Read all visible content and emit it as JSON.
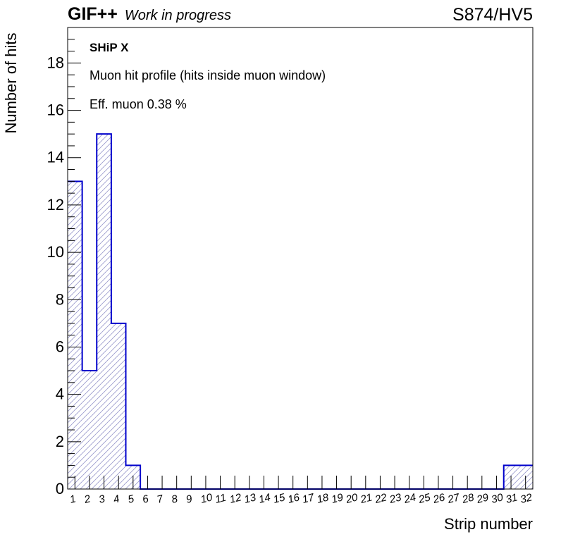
{
  "header": {
    "brand": "GIF++",
    "status": "Work in progress",
    "run_label": "S874/HV5"
  },
  "annotations": {
    "title": "SHiP X",
    "description": "Muon hit profile (hits inside muon window)",
    "efficiency": "Eff. muon 0.38 %"
  },
  "chart_data": {
    "type": "bar",
    "style": "step-histogram",
    "xlabel": "Strip number",
    "ylabel": "Number of hits",
    "categories": [
      "1",
      "2",
      "3",
      "4",
      "5",
      "6",
      "7",
      "8",
      "9",
      "10",
      "11",
      "12",
      "13",
      "14",
      "15",
      "16",
      "17",
      "18",
      "19",
      "20",
      "21",
      "22",
      "23",
      "24",
      "25",
      "26",
      "27",
      "28",
      "29",
      "30",
      "31",
      "32"
    ],
    "values": [
      13,
      5,
      15,
      7,
      1,
      0,
      0,
      0,
      0,
      0,
      0,
      0,
      0,
      0,
      0,
      0,
      0,
      0,
      0,
      0,
      0,
      0,
      0,
      0,
      0,
      0,
      0,
      0,
      0,
      0,
      1,
      1
    ],
    "ylim": [
      0,
      19.5
    ],
    "yticks": [
      0,
      2,
      4,
      6,
      8,
      10,
      12,
      14,
      16,
      18
    ],
    "line_color": "#0000cc",
    "fill_hatch_color": "#9999cc",
    "grid": false
  }
}
